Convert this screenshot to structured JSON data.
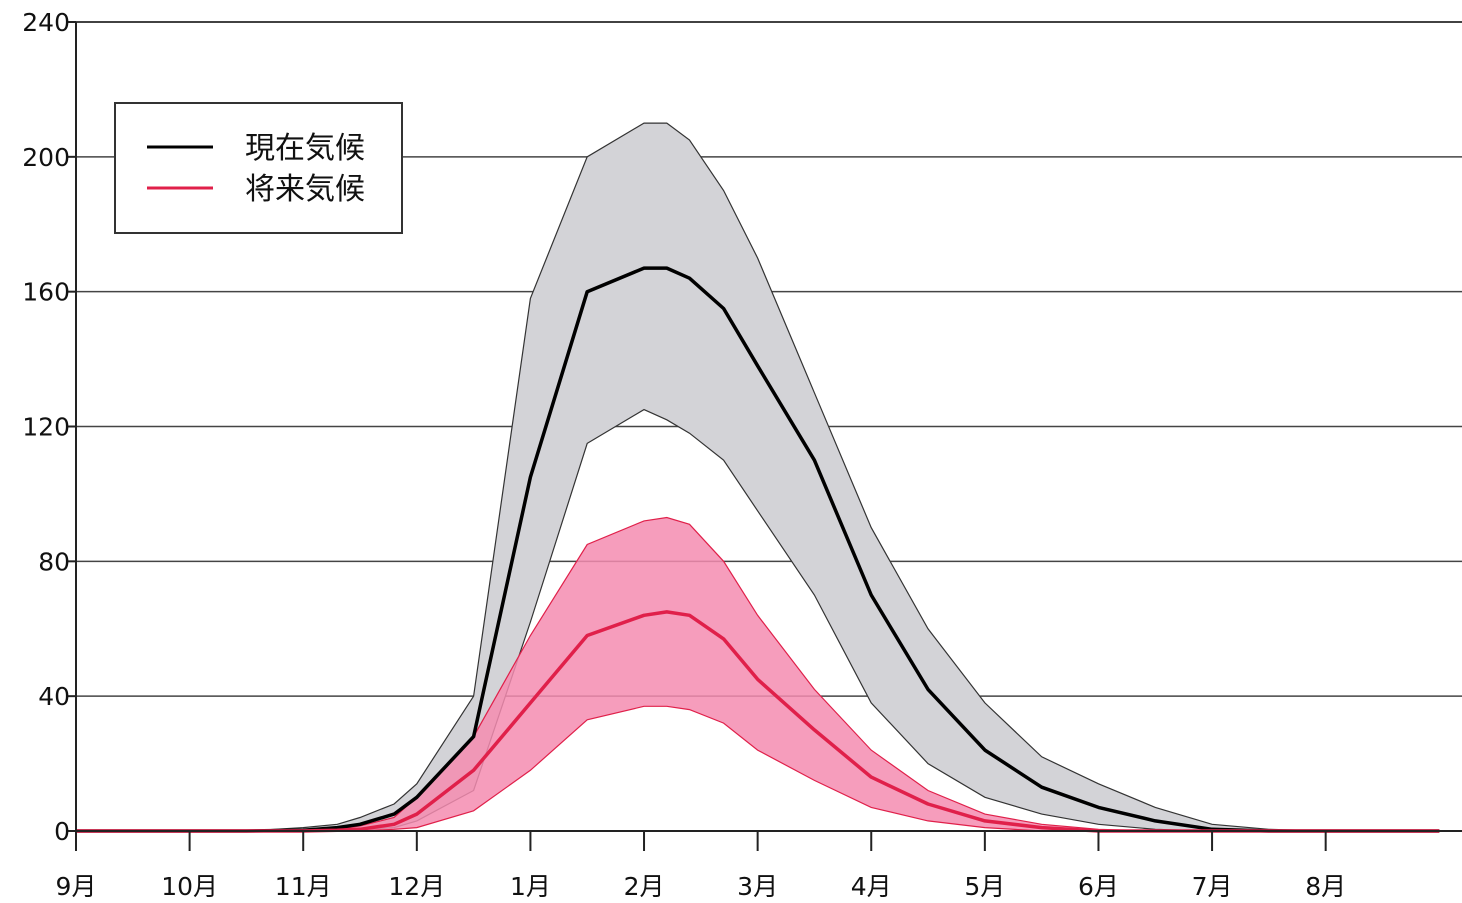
{
  "chart_data": {
    "type": "area",
    "title": "",
    "xlabel": "",
    "ylabel": "",
    "ylim": [
      0,
      240
    ],
    "yticks": [
      0,
      40,
      80,
      120,
      160,
      200,
      240
    ],
    "categories": [
      "9月",
      "10月",
      "11月",
      "12月",
      "1月",
      "2月",
      "3月",
      "4月",
      "5月",
      "6月",
      "7月",
      "8月"
    ],
    "grid": "horizontal",
    "legend_position": "top-left",
    "x": [
      0,
      0.5,
      1,
      1.5,
      2,
      2.3,
      2.5,
      2.8,
      3,
      3.5,
      4,
      4.5,
      5,
      5.2,
      5.4,
      5.7,
      6,
      6.5,
      7,
      7.5,
      8,
      8.5,
      9,
      9.5,
      10,
      10.5,
      11,
      11.5,
      12
    ],
    "series": [
      {
        "name": "現在気候",
        "color": "#000000",
        "band_color": "#d3d3d7",
        "mean": [
          0,
          0,
          0,
          0,
          0.2,
          1,
          2,
          5,
          10,
          28,
          105,
          160,
          167,
          167,
          164,
          155,
          138,
          110,
          70,
          42,
          24,
          13,
          7,
          3,
          0.5,
          0,
          0,
          0,
          0
        ],
        "upper": [
          0,
          0,
          0,
          0,
          1,
          2,
          4,
          8,
          14,
          40,
          158,
          200,
          210,
          210,
          205,
          190,
          170,
          130,
          90,
          60,
          38,
          22,
          14,
          7,
          2,
          0.5,
          0,
          0,
          0
        ],
        "lower": [
          0,
          0,
          0,
          0,
          0,
          0.2,
          0.5,
          1,
          3,
          12,
          62,
          115,
          125,
          122,
          118,
          110,
          95,
          70,
          38,
          20,
          10,
          5,
          2,
          0.5,
          0,
          0,
          0,
          0,
          0
        ]
      },
      {
        "name": "将来気候",
        "color": "#e0204a",
        "band_color": "#f58cb0",
        "mean": [
          0,
          0,
          0,
          0,
          0,
          0.2,
          0.5,
          2,
          5,
          18,
          38,
          58,
          64,
          65,
          64,
          57,
          45,
          30,
          16,
          8,
          3,
          1,
          0,
          0,
          0,
          0,
          0,
          0,
          0
        ],
        "upper": [
          0,
          0,
          0,
          0,
          0,
          0.5,
          1.5,
          4,
          10,
          28,
          58,
          85,
          92,
          93,
          91,
          80,
          64,
          42,
          24,
          12,
          5,
          2,
          0.5,
          0,
          0,
          0,
          0,
          0,
          0
        ],
        "lower": [
          0,
          0,
          0,
          0,
          0,
          0,
          0,
          0.5,
          1,
          6,
          18,
          33,
          37,
          37,
          36,
          32,
          24,
          15,
          7,
          3,
          1,
          0,
          0,
          0,
          0,
          0,
          0,
          0,
          0
        ]
      }
    ]
  }
}
